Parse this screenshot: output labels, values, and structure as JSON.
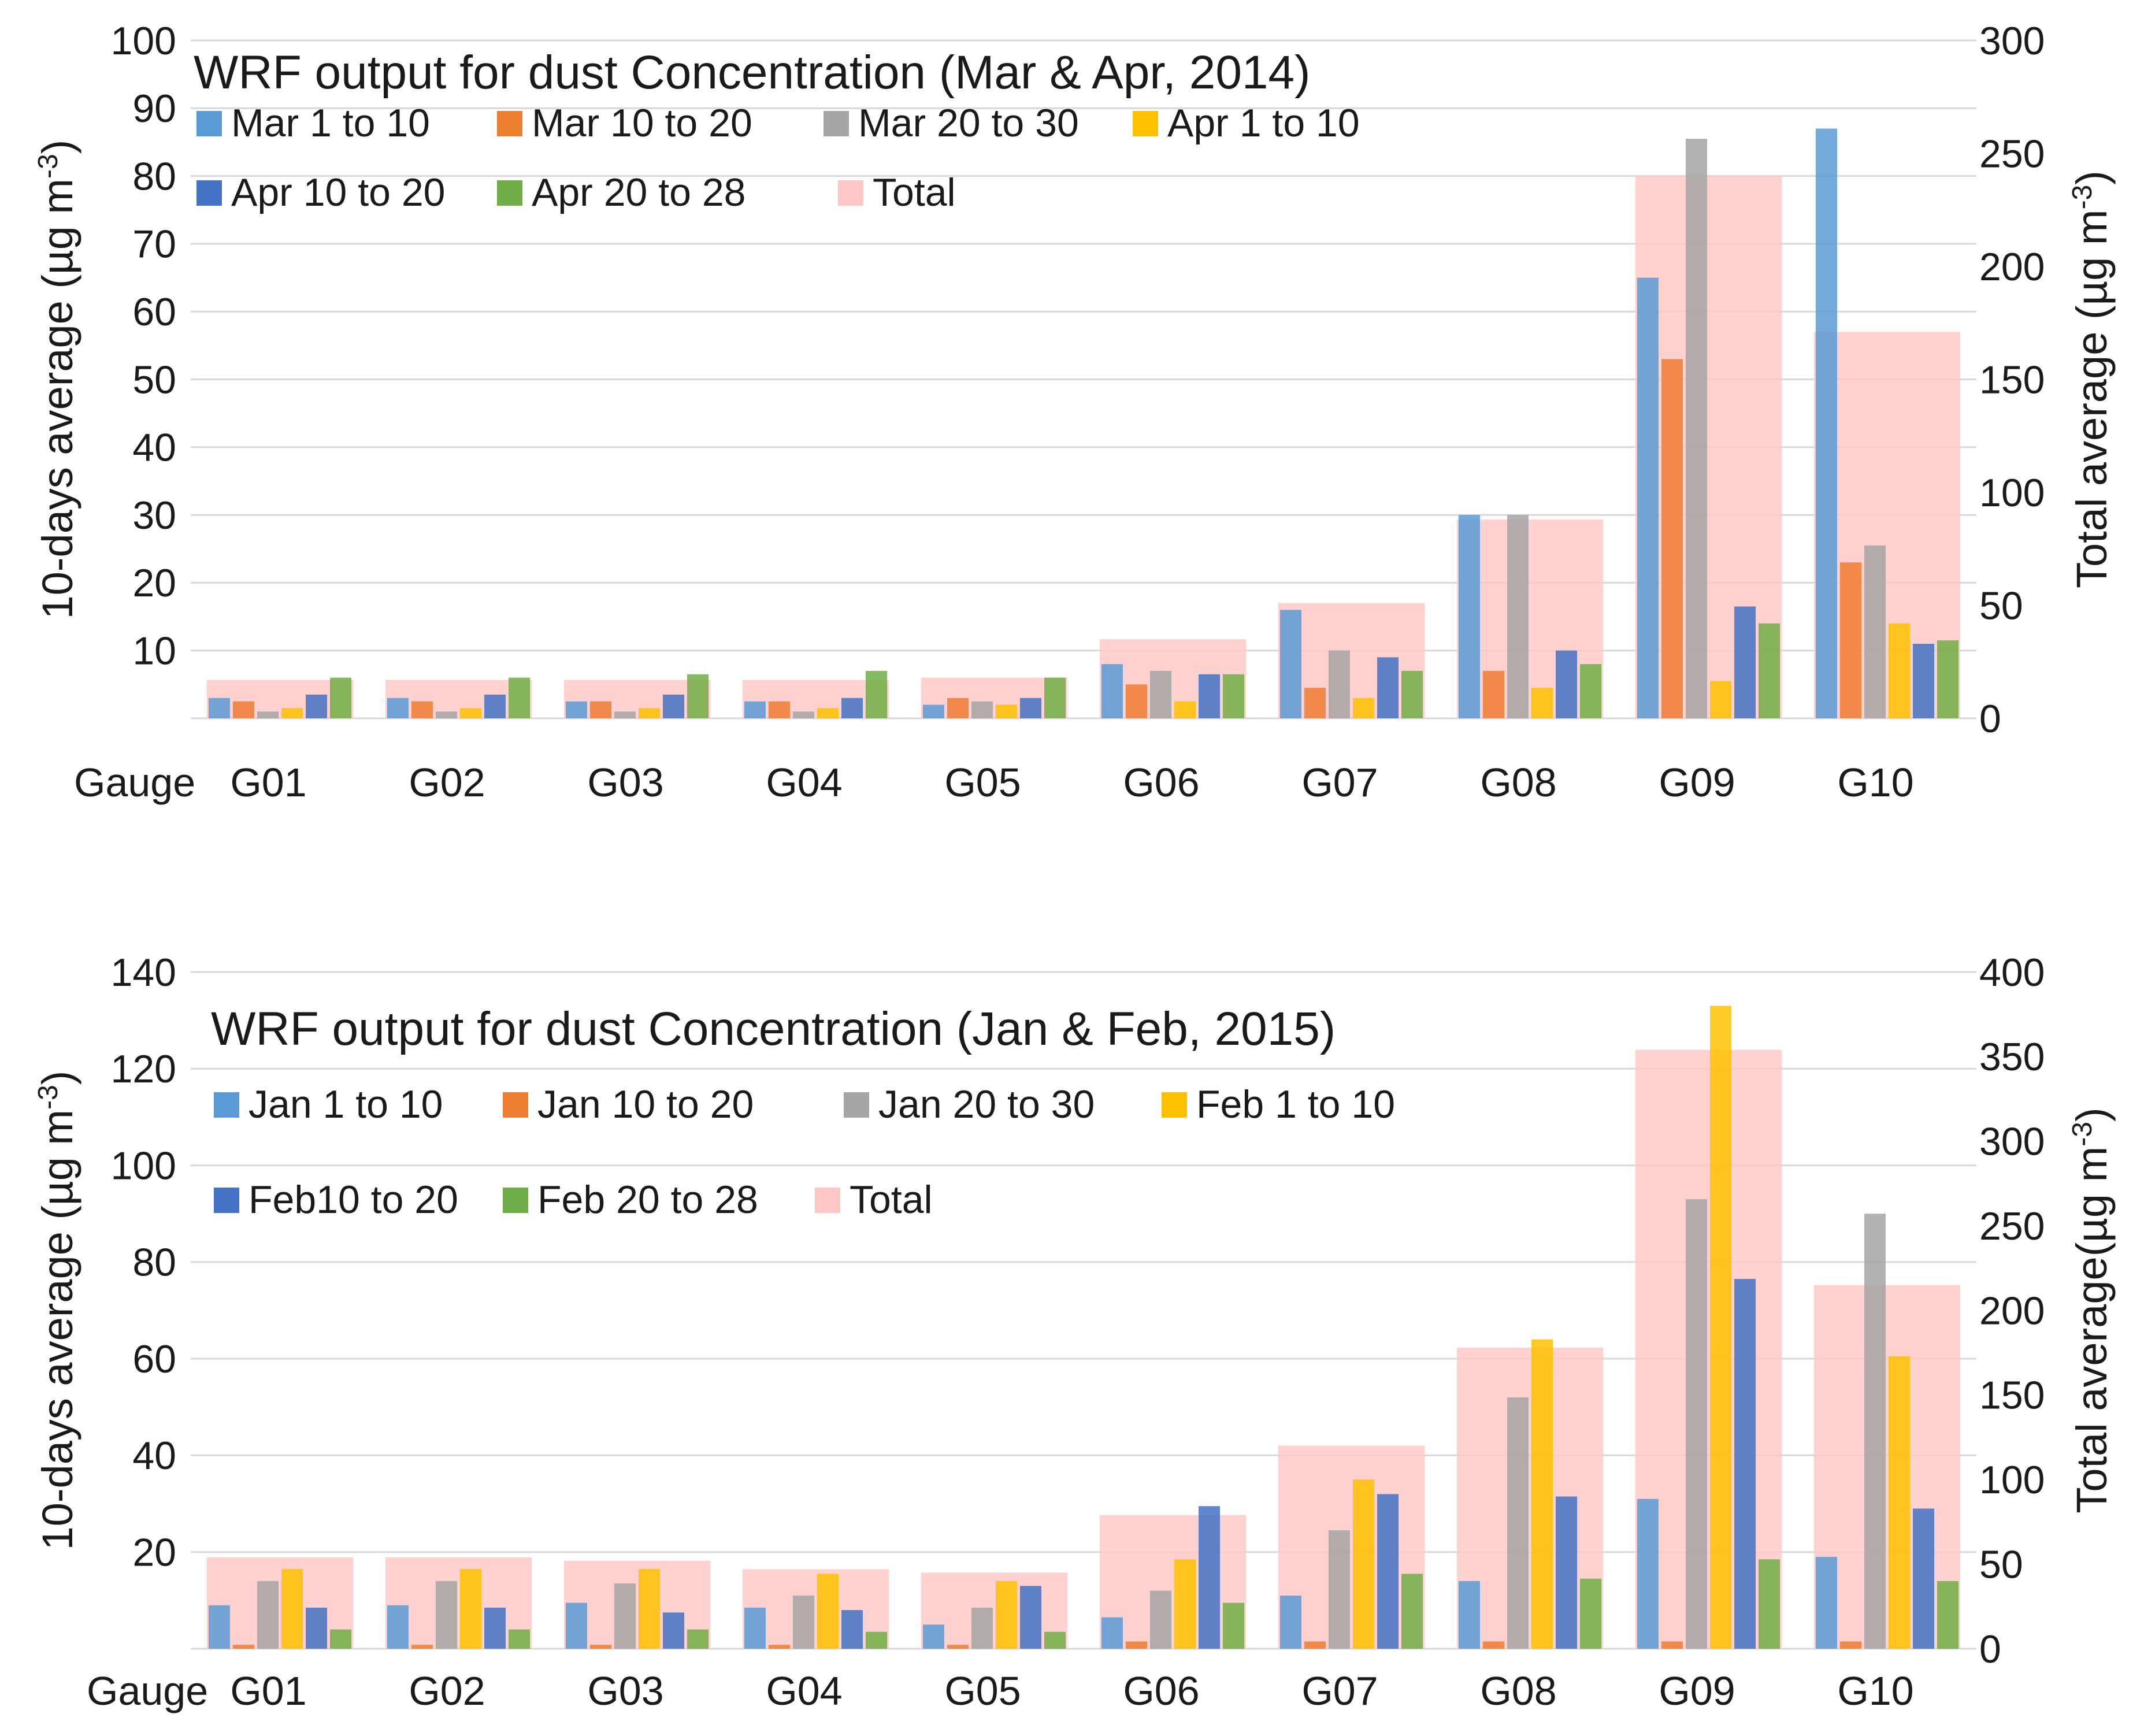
{
  "chart_data": [
    {
      "type": "bar",
      "title": "WRF output for dust Concentration (Mar & Apr, 2014)",
      "xlabel": "Gauge",
      "ylabel": "10-days average (µg m⁻³)",
      "y2label": "Total average (µg m⁻³)",
      "ylabel_parts": {
        "main": "10-days average (µg m",
        "sup": "-3",
        "end": ")"
      },
      "y2label_parts": {
        "main": "Total average (µg m",
        "sup": "-3",
        "end": ")"
      },
      "categories": [
        "G01",
        "G02",
        "G03",
        "G04",
        "G05",
        "G06",
        "G07",
        "G08",
        "G09",
        "G10"
      ],
      "ylim": [
        0,
        100
      ],
      "y2lim": [
        0,
        300
      ],
      "yticks": [
        10,
        20,
        30,
        40,
        50,
        60,
        70,
        80,
        90,
        100
      ],
      "y2ticks": [
        0,
        50,
        100,
        150,
        200,
        250,
        300
      ],
      "grid": true,
      "legend_position": "top-left",
      "series": [
        {
          "name": "Mar 1 to 10",
          "color": "#5b9bd5",
          "axis": "left",
          "values": [
            3,
            3,
            2.5,
            2.5,
            2,
            8,
            16,
            30,
            65,
            87
          ]
        },
        {
          "name": "Mar 10 to 20",
          "color": "#ed7d31",
          "axis": "left",
          "values": [
            2.5,
            2.5,
            2.5,
            2.5,
            3,
            5,
            4.5,
            7,
            53,
            23
          ]
        },
        {
          "name": "Mar 20 to 30",
          "color": "#a5a5a5",
          "axis": "left",
          "values": [
            1,
            1,
            1,
            1,
            2.5,
            7,
            10,
            30,
            85.5,
            25.5
          ]
        },
        {
          "name": "Apr 1 to 10",
          "color": "#ffc000",
          "axis": "left",
          "values": [
            1.5,
            1.5,
            1.5,
            1.5,
            2,
            2.5,
            3,
            4.5,
            5.5,
            14
          ]
        },
        {
          "name": "Apr 10 to 20",
          "color": "#4472c4",
          "axis": "left",
          "values": [
            3.5,
            3.5,
            3.5,
            3,
            3,
            6.5,
            9,
            10,
            16.5,
            11
          ]
        },
        {
          "name": "Apr 20 to 28",
          "color": "#70ad47",
          "axis": "left",
          "values": [
            6,
            6,
            6.5,
            7,
            6,
            6.5,
            7,
            8,
            14,
            11.5
          ]
        },
        {
          "name": "Total",
          "color": "#ffc7c7",
          "axis": "right",
          "values": [
            17,
            17,
            17,
            17,
            18,
            35,
            51,
            88,
            240,
            171
          ]
        }
      ]
    },
    {
      "type": "bar",
      "title": "WRF output for dust Concentration (Jan & Feb, 2015)",
      "xlabel": "Gauge",
      "ylabel": "10-days average (µg m⁻³)",
      "y2label": "Total average(µg m⁻³)",
      "ylabel_parts": {
        "main": "10-days average (µg m",
        "sup": "-3",
        "end": ")"
      },
      "y2label_parts": {
        "main": "Total average(µg m",
        "sup": "-3",
        "end": ")"
      },
      "categories": [
        "G01",
        "G02",
        "G03",
        "G04",
        "G05",
        "G06",
        "G07",
        "G08",
        "G09",
        "G10"
      ],
      "ylim": [
        0,
        140
      ],
      "y2lim": [
        0,
        400
      ],
      "yticks": [
        20,
        40,
        60,
        80,
        100,
        120,
        140
      ],
      "y2ticks": [
        0,
        50,
        100,
        150,
        200,
        250,
        300,
        350,
        400
      ],
      "grid": true,
      "legend_position": "top-left",
      "series": [
        {
          "name": "Jan 1 to 10",
          "color": "#5b9bd5",
          "axis": "left",
          "values": [
            9,
            9,
            9.5,
            8.5,
            5,
            6.5,
            11,
            14,
            31,
            19
          ]
        },
        {
          "name": "Jan 10 to 20",
          "color": "#ed7d31",
          "axis": "left",
          "values": [
            0.8,
            0.8,
            0.8,
            0.8,
            0.8,
            1.5,
            1.5,
            1.5,
            1.5,
            1.5
          ]
        },
        {
          "name": "Jan 20 to 30",
          "color": "#a5a5a5",
          "axis": "left",
          "values": [
            14,
            14,
            13.5,
            11,
            8.5,
            12,
            24.5,
            52,
            93,
            90
          ]
        },
        {
          "name": "Feb 1 to 10",
          "color": "#ffc000",
          "axis": "left",
          "values": [
            16.5,
            16.5,
            16.5,
            15.5,
            14,
            18.5,
            35,
            64,
            133,
            60.5
          ]
        },
        {
          "name": "Feb10 to 20",
          "color": "#4472c4",
          "axis": "left",
          "values": [
            8.5,
            8.5,
            7.5,
            8,
            13,
            29.5,
            32,
            31.5,
            76.5,
            29
          ]
        },
        {
          "name": "Feb 20 to 28",
          "color": "#70ad47",
          "axis": "left",
          "values": [
            4,
            4,
            4,
            3.5,
            3.5,
            9.5,
            15.5,
            14.5,
            18.5,
            14
          ]
        },
        {
          "name": "Total",
          "color": "#ffc7c7",
          "axis": "right",
          "values": [
            54,
            54,
            52,
            47,
            45,
            79,
            120,
            178,
            354,
            215
          ]
        }
      ]
    }
  ]
}
